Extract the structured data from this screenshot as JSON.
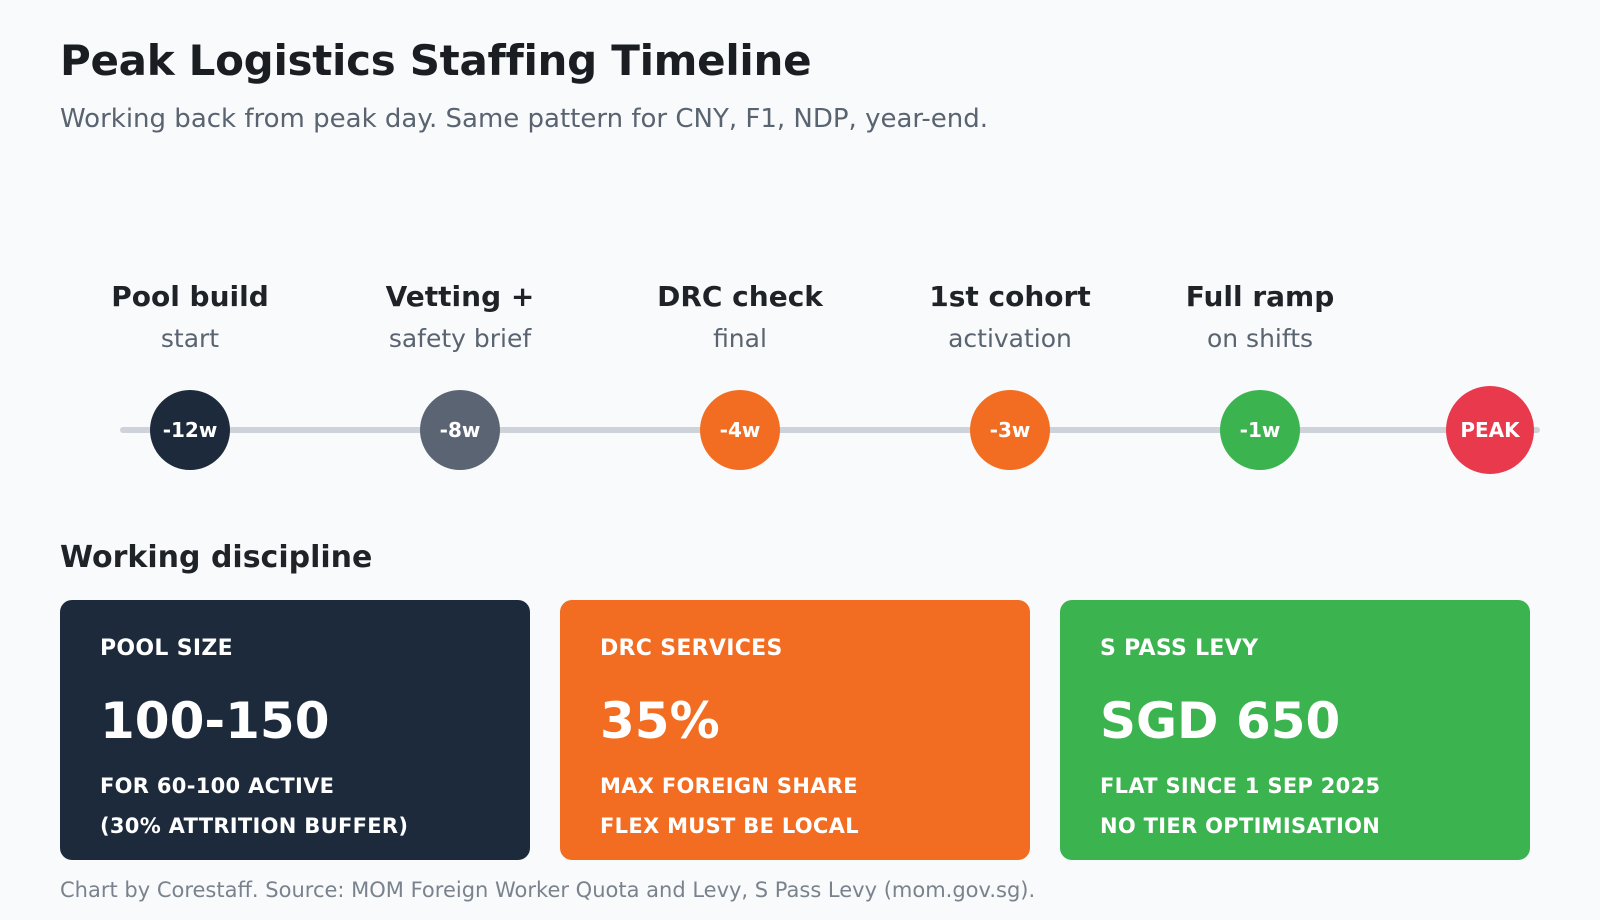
{
  "header": {
    "title": "Peak Logistics Staffing Timeline",
    "subtitle": "Working back from peak day. Same pattern for CNY, F1, NDP, year-end."
  },
  "timeline": {
    "milestones": [
      {
        "label": "Pool build",
        "sublabel": "start",
        "marker": "-12w",
        "weeks_before_peak": 12,
        "color": "#1c2a3b"
      },
      {
        "label": "Vetting +",
        "sublabel": "safety brief",
        "marker": "-8w",
        "weeks_before_peak": 8,
        "color": "#5b6472"
      },
      {
        "label": "DRC check",
        "sublabel": "final",
        "marker": "-4w",
        "weeks_before_peak": 4,
        "color": "#f26d21"
      },
      {
        "label": "1st cohort",
        "sublabel": "activation",
        "marker": "-3w",
        "weeks_before_peak": 3,
        "color": "#f26d21"
      },
      {
        "label": "Full ramp",
        "sublabel": "on shifts",
        "marker": "-1w",
        "weeks_before_peak": 1,
        "color": "#3bb34f"
      },
      {
        "label": "",
        "sublabel": "",
        "marker": "PEAK",
        "weeks_before_peak": 0,
        "color": "#e8394d"
      }
    ]
  },
  "discipline": {
    "title": "Working discipline",
    "cards": [
      {
        "label": "POOL SIZE",
        "value": "100-150",
        "line1": "FOR 60-100 ACTIVE",
        "line2": "(30% ATTRITION BUFFER)",
        "color": "#1c2a3b"
      },
      {
        "label": "DRC SERVICES",
        "value": "35%",
        "line1": "MAX FOREIGN SHARE",
        "line2": "FLEX MUST BE LOCAL",
        "color": "#f26d21"
      },
      {
        "label": "S PASS LEVY",
        "value": "SGD 650",
        "line1": "FLAT SINCE 1 SEP 2025",
        "line2": "NO TIER OPTIMISATION",
        "color": "#3bb34f"
      }
    ]
  },
  "footer": {
    "note": "Chart by Corestaff. Source: MOM Foreign Worker Quota and Levy, S Pass Levy (mom.gov.sg)."
  }
}
